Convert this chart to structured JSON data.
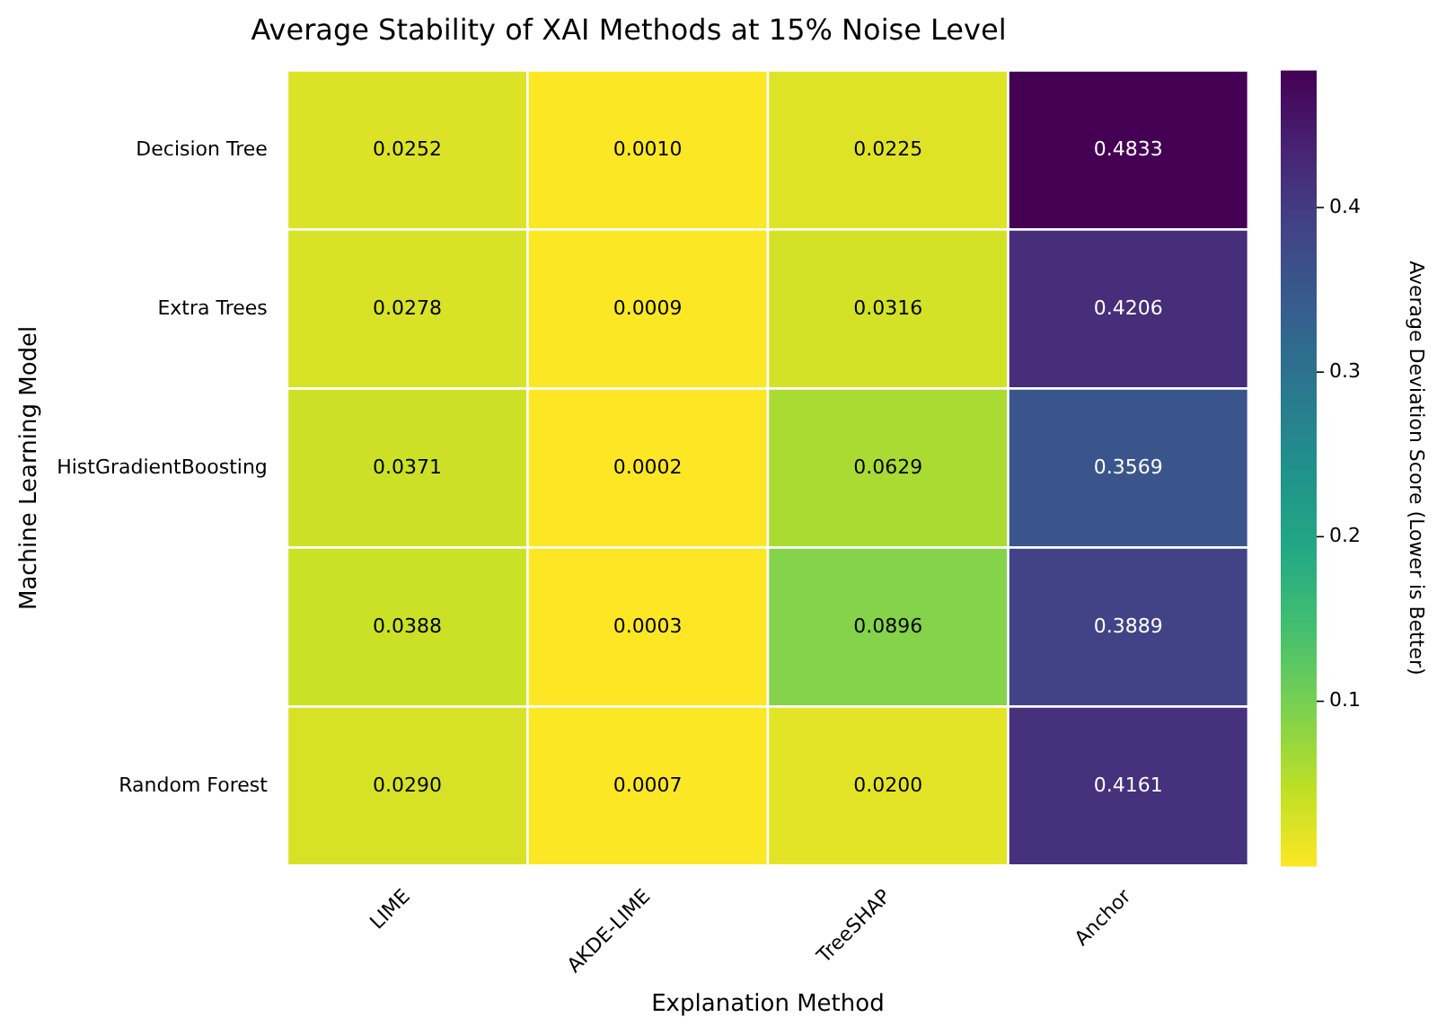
{
  "chart_data": {
    "type": "heatmap",
    "title": "Average Stability of XAI Methods at 15% Noise Level",
    "xlabel": "Explanation Method",
    "ylabel": "Machine Learning Model",
    "clabel": "Average Deviation Score (Lower is Better)",
    "categories": [
      "LIME",
      "AKDE-LIME",
      "TreeSHAP",
      "Anchor"
    ],
    "y_categories": [
      "Decision Tree",
      "Extra Trees",
      "HistGradientBoosting",
      null,
      "Random Forest"
    ],
    "cells": [
      [
        0.0252,
        0.001,
        0.0225,
        0.4833
      ],
      [
        0.0278,
        0.0009,
        0.0316,
        0.4206
      ],
      [
        0.0371,
        0.0002,
        0.0629,
        0.3569
      ],
      [
        0.0388,
        0.0003,
        0.0896,
        0.3889
      ],
      [
        0.029,
        0.0007,
        0.02,
        0.4161
      ]
    ],
    "cell_labels": [
      [
        "0.0252",
        "0.0010",
        "0.0225",
        "0.4833"
      ],
      [
        "0.0278",
        "0.0009",
        "0.0316",
        "0.4206"
      ],
      [
        "0.0371",
        "0.0002",
        "0.0629",
        "0.3569"
      ],
      [
        "0.0388",
        "0.0003",
        "0.0896",
        "0.3889"
      ],
      [
        "0.0290",
        "0.0007",
        "0.0200",
        "0.4161"
      ]
    ],
    "clim": [
      0.0002,
      0.4833
    ],
    "cticks": [
      0.1,
      0.2,
      0.3,
      0.4
    ]
  }
}
